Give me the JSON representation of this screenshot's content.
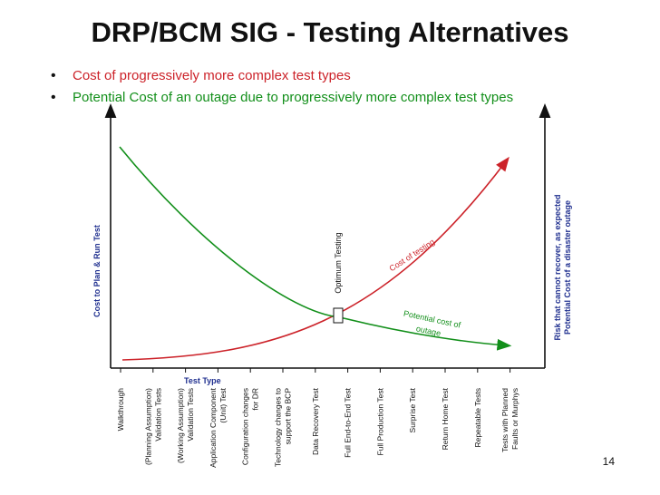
{
  "title": "DRP/BCM SIG - Testing Alternatives",
  "bullets": [
    "Cost of progressively more complex test types",
    "Potential Cost of an outage due to progressively more complex test types"
  ],
  "axes": {
    "y_left": "Cost to Plan & Run Test",
    "y_right_line1": "Risk that cannot recover, as expected",
    "y_right_line2": "Potential Cost of a disaster outage",
    "x": "Test Type"
  },
  "curves": {
    "cost_label": "Cost of testing",
    "outage_label_line1": "Potential cost of",
    "outage_label_line2": "outage",
    "optimum_label": "Optimum Testing"
  },
  "test_types": [
    [
      "Walkthrough"
    ],
    [
      "(Planning Assumption)",
      "Validation Tests"
    ],
    [
      "(Working Assumption)",
      "Validation Tests"
    ],
    [
      "Application Component",
      "(Unit) Test"
    ],
    [
      "Configuration changes",
      "for DR"
    ],
    [
      "Technology changes to",
      "support the BCP"
    ],
    [
      "Data Recovery Test"
    ],
    [
      "Full End-to-End Test"
    ],
    [
      "Full Production Test"
    ],
    [
      "Surprise Test"
    ],
    [
      "Return Home Test"
    ],
    [
      "Repeatable Tests"
    ],
    [
      "Tests with Planned",
      "Faults or Murphys"
    ]
  ],
  "colors": {
    "cost": "#cc2229",
    "outage": "#128f1a",
    "axis_label": "#1f2f8f",
    "axis": "#111111"
  },
  "page_number": "14"
}
